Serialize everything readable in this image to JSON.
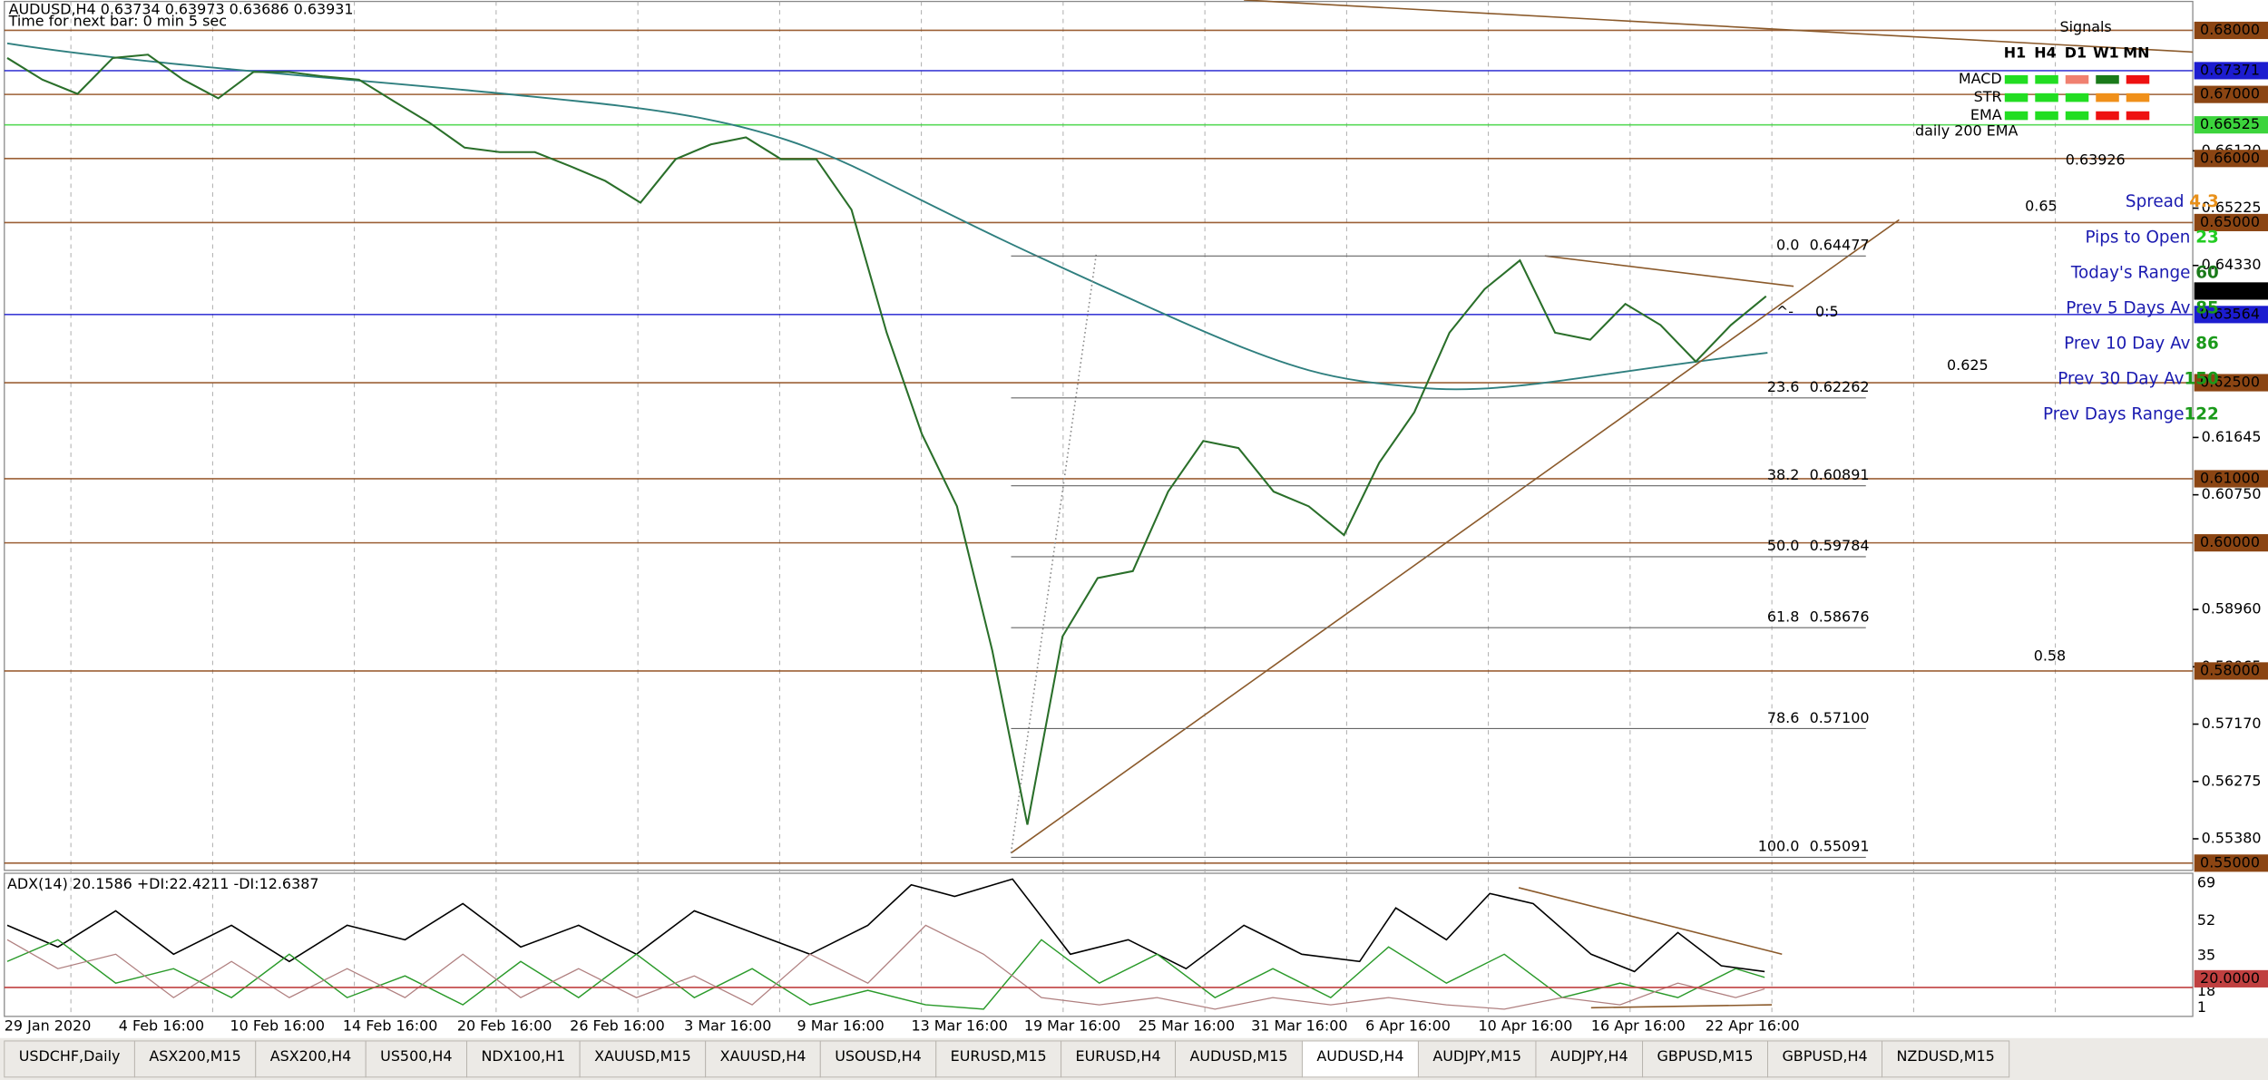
{
  "header": {
    "symbol_line": "AUDUSD,H4  0.63734 0.63973 0.63686 0.63931",
    "timer": "Time for next bar: 0 min 5 sec"
  },
  "price_axis": {
    "ylim": [
      0.55,
      0.68
    ],
    "levels": [
      {
        "value": 0.68,
        "label": "0.68000",
        "color": "#8b4513"
      },
      {
        "value": 0.67371,
        "label": "0.67371",
        "color": "#1c1ccf"
      },
      {
        "value": 0.67,
        "label": "0.67000",
        "color": "#8b4513"
      },
      {
        "value": 0.66525,
        "label": "0.66525",
        "color": "#3cd43c"
      },
      {
        "value": 0.66,
        "label": "0.66000",
        "color": "#8b4513"
      },
      {
        "value": 0.65,
        "label": "0.65000",
        "color": "#8b4513"
      },
      {
        "value": 0.63931,
        "label": "0.63931",
        "color": "#000000"
      },
      {
        "value": 0.63564,
        "label": "0.63564",
        "color": "#1c1ccf"
      },
      {
        "value": 0.625,
        "label": "0.62500",
        "color": "#8b4513"
      },
      {
        "value": 0.61,
        "label": "0.61000",
        "color": "#8b4513"
      },
      {
        "value": 0.6,
        "label": "0.60000",
        "color": "#8b4513"
      },
      {
        "value": 0.58,
        "label": "0.58000",
        "color": "#8b4513"
      },
      {
        "value": 0.55,
        "label": "0.55000",
        "color": "#8b4513"
      }
    ],
    "ticks": [
      {
        "value": 0.6612,
        "label": "0.66120"
      },
      {
        "value": 0.65225,
        "label": "0.65225"
      },
      {
        "value": 0.6433,
        "label": "0.64330"
      },
      {
        "value": 0.61645,
        "label": "0.61645"
      },
      {
        "value": 0.6075,
        "label": "0.60750"
      },
      {
        "value": 0.5896,
        "label": "0.58960"
      },
      {
        "value": 0.58065,
        "label": "0.58065"
      },
      {
        "value": 0.5717,
        "label": "0.57170"
      },
      {
        "value": 0.56275,
        "label": "0.56275"
      },
      {
        "value": 0.5538,
        "label": "0.55380"
      }
    ]
  },
  "price_series": {
    "color": "#2a6f2a",
    "values": [
      0.6757,
      0.6723,
      0.6701,
      0.6757,
      0.6762,
      0.6723,
      0.6694,
      0.6735,
      0.6735,
      0.6728,
      0.6723,
      0.6689,
      0.6656,
      0.6617,
      0.661,
      0.661,
      0.6588,
      0.6565,
      0.6531,
      0.6599,
      0.6622,
      0.6633,
      0.6599,
      0.6599,
      0.652,
      0.6328,
      0.617,
      0.6057,
      0.5832,
      0.556,
      0.5854,
      0.5945,
      0.5956,
      0.608,
      0.6159,
      0.6148,
      0.608,
      0.6057,
      0.6012,
      0.6125,
      0.6204,
      0.6328,
      0.6396,
      0.6441,
      0.6328,
      0.6317,
      0.6373,
      0.634,
      0.6283,
      0.634,
      0.6385
    ]
  },
  "fib": {
    "levels": [
      {
        "ratio": "0.0",
        "price": {
          "value": 0.64477,
          "label": "0.64477"
        }
      },
      {
        "ratio": "23.6",
        "price": {
          "value": 0.62262,
          "label": "0.62262"
        }
      },
      {
        "ratio": "38.2",
        "price": {
          "value": 0.60891,
          "label": "0.60891"
        }
      },
      {
        "ratio": "50.0",
        "price": {
          "value": 0.59784,
          "label": "0.59784"
        }
      },
      {
        "ratio": "61.8",
        "price": {
          "value": 0.58676,
          "label": "0.58676"
        }
      },
      {
        "ratio": "78.6",
        "price": {
          "value": 0.571,
          "label": "0.57100"
        }
      },
      {
        "ratio": "100.0",
        "price": {
          "value": 0.55091,
          "label": "0.55091"
        }
      }
    ]
  },
  "signals": {
    "title": "Signals",
    "columns": [
      "H1",
      "H4",
      "D1",
      "W1",
      "MN"
    ],
    "rows": [
      {
        "name": "MACD",
        "colors": [
          "#22dd22",
          "#22dd22",
          "#f08070",
          "#1a7a1a",
          "#ee1111"
        ]
      },
      {
        "name": "STR",
        "colors": [
          "#22dd22",
          "#22dd22",
          "#22dd22",
          "#f0901a",
          "#f0901a"
        ]
      },
      {
        "name": "EMA",
        "colors": [
          "#22dd22",
          "#22dd22",
          "#22dd22",
          "#ee1111",
          "#ee1111"
        ]
      }
    ]
  },
  "annotations": {
    "ema_label": "daily 200 EMA",
    "ema_value": "0.63926",
    "level_a": "0.65",
    "level_b": "0.625",
    "level_c": "0.58",
    "ratio_mark": "^-",
    "ratio": "0:5"
  },
  "stats": [
    {
      "label": "Spread ",
      "value": "4.3",
      "color": "#e8901a"
    },
    {
      "label": "Pips to Open ",
      "value": "23",
      "color": "#22cc22"
    },
    {
      "label": "Today's Range ",
      "value": "60",
      "color": "#1a7a1a"
    },
    {
      "label": "Prev 5 Days Av ",
      "value": "85",
      "color": "#1a9a1a"
    },
    {
      "label": "Prev 10 Day Av ",
      "value": "86",
      "color": "#1a9a1a"
    },
    {
      "label": "Prev 30 Day Av",
      "value": "150",
      "color": "#1a9a1a"
    },
    {
      "label": "Prev Days Range",
      "value": "122",
      "color": "#1a9a1a"
    }
  ],
  "adx": {
    "label": "ADX(14) 20.1586 +DI:22.4211 -DI:12.6387",
    "scale": [
      "69",
      "52",
      "35",
      "18",
      "1"
    ],
    "level": "20.0000"
  },
  "time_axis": [
    "29 Jan 2020",
    "4 Feb 16:00",
    "10 Feb 16:00",
    "14 Feb 16:00",
    "20 Feb 16:00",
    "26 Feb 16:00",
    "3 Mar 16:00",
    "9 Mar 16:00",
    "13 Mar 16:00",
    "19 Mar 16:00",
    "25 Mar 16:00",
    "31 Mar 16:00",
    "6 Apr 16:00",
    "10 Apr 16:00",
    "16 Apr 16:00",
    "22 Apr 16:00"
  ],
  "tabs": [
    "USDCHF,Daily",
    "ASX200,M15",
    "ASX200,H4",
    "US500,H4",
    "NDX100,H1",
    "XAUUSD,M15",
    "XAUUSD,H4",
    "USOUSD,H4",
    "EURUSD,M15",
    "EURUSD,H4",
    "AUDUSD,M15",
    "AUDUSD,H4",
    "AUDJPY,M15",
    "AUDJPY,H4",
    "GBPUSD,M15",
    "GBPUSD,H4",
    "NZDUSD,M15"
  ],
  "active_tab": "AUDUSD,H4"
}
